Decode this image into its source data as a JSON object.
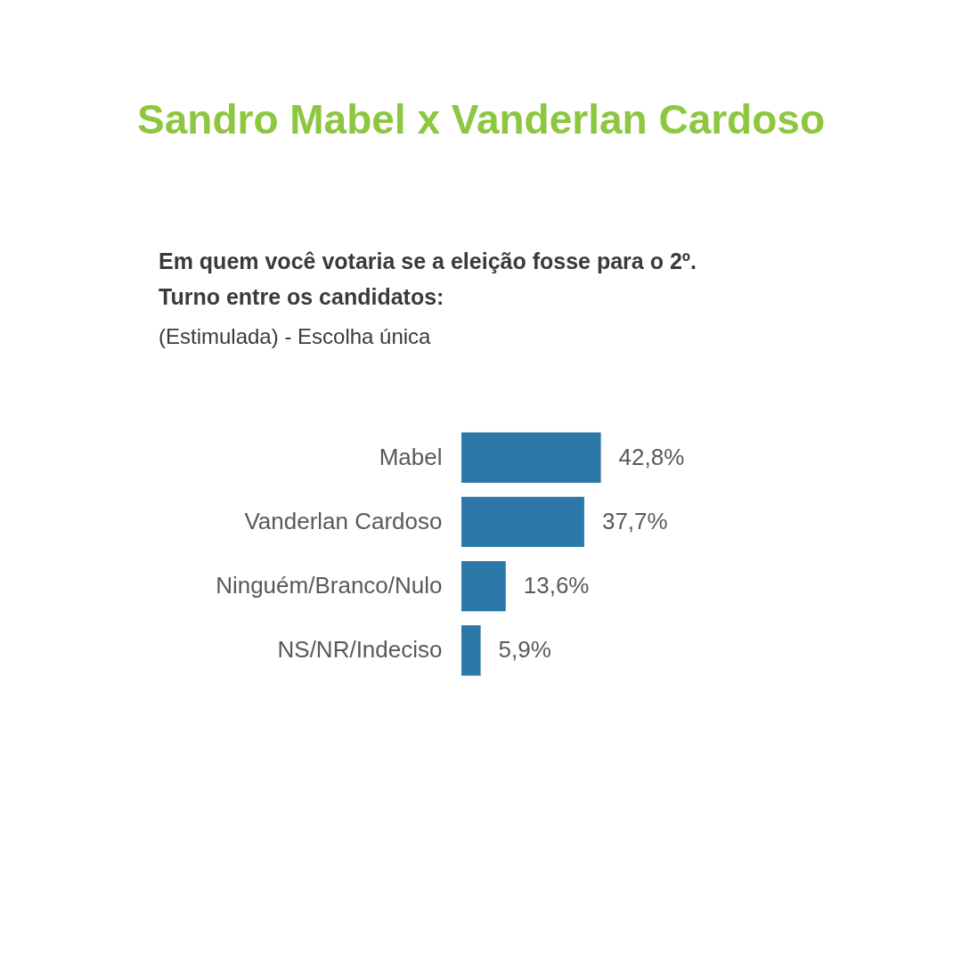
{
  "chart_data": {
    "type": "bar",
    "orientation": "horizontal",
    "title": "Sandro Mabel x Vanderlan Cardoso",
    "subtitle": "Em quem você votaria se a eleição fosse para o 2º. Turno entre os candidatos:",
    "annotations": [
      "(Estimulada) - Escolha única"
    ],
    "categories": [
      "Mabel",
      "Vanderlan Cardoso",
      "Ninguém/Branco/Nulo",
      "NS/NR/Indeciso"
    ],
    "values": [
      42.8,
      37.7,
      13.6,
      5.9
    ],
    "color": "#2b78a9",
    "value_labels": [
      "42,8%",
      "37,7%",
      "13,6%",
      "5,9%"
    ]
  }
}
